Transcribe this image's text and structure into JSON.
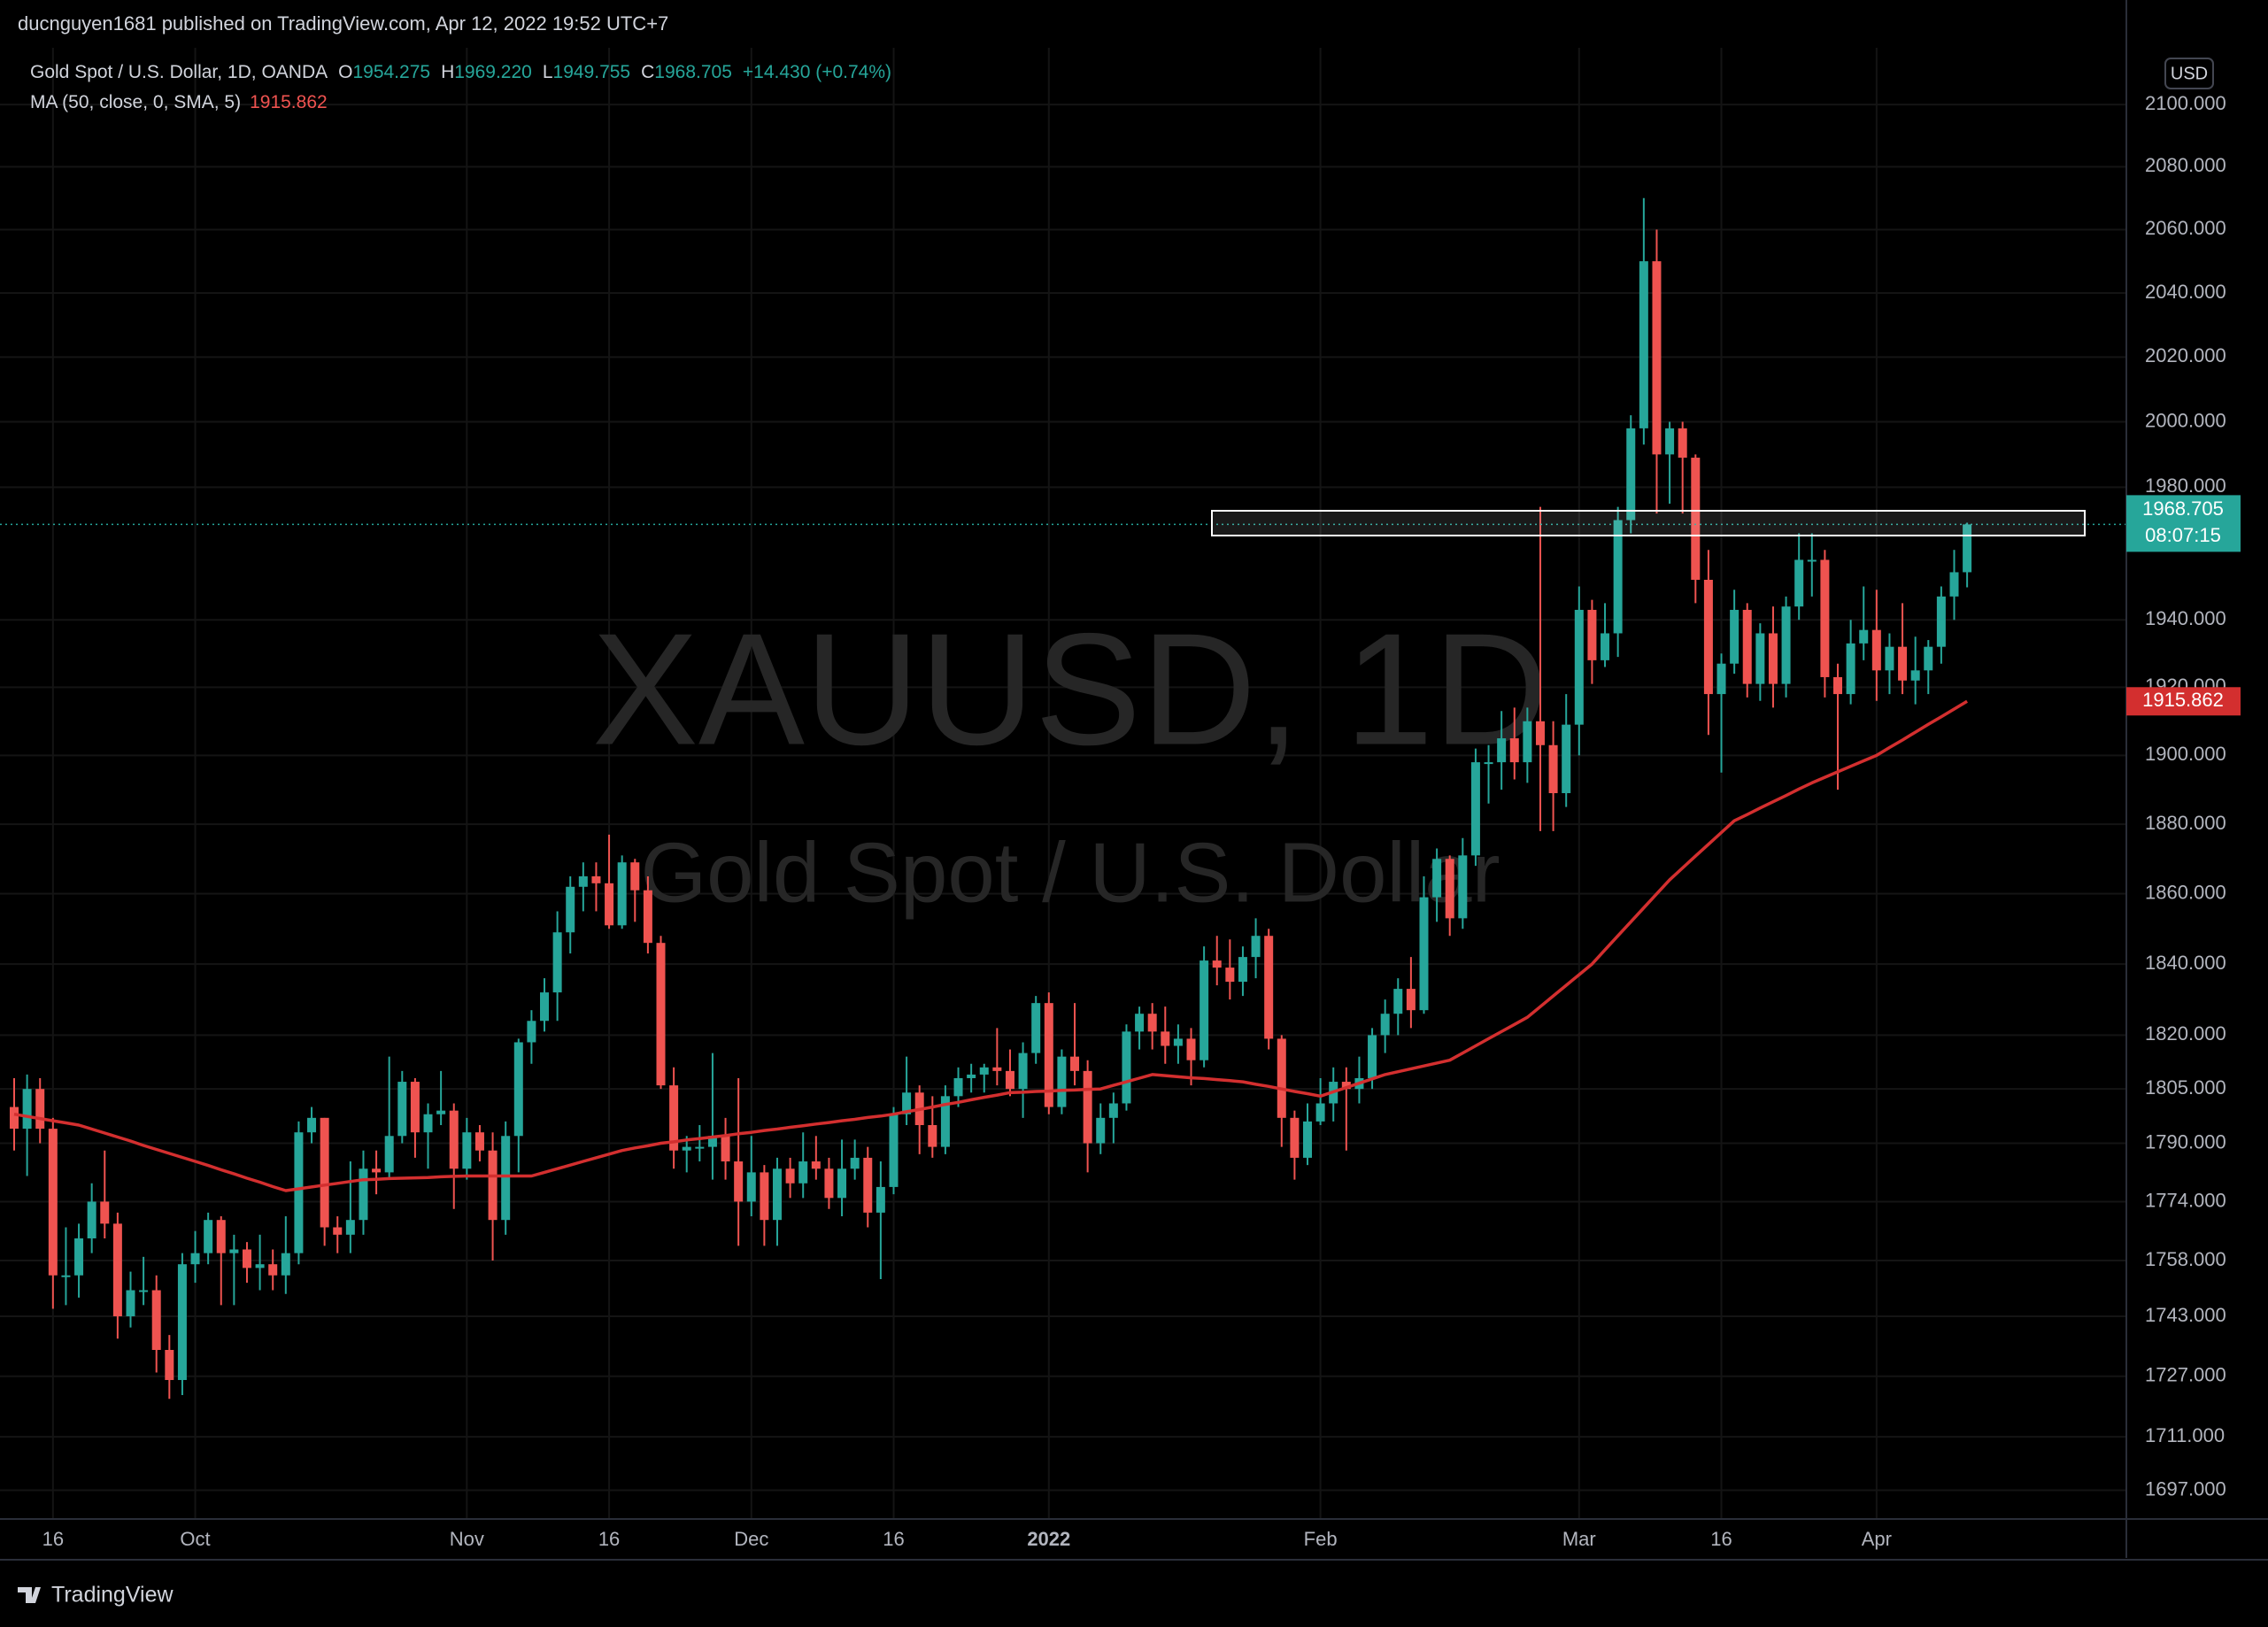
{
  "header": {
    "text": "ducnguyen1681 published on TradingView.com, Apr 12, 2022 19:52 UTC+7"
  },
  "footer": {
    "brand": "TradingView"
  },
  "chart_data": {
    "type": "candlestick",
    "log": true,
    "grid": true,
    "currency": "USD",
    "watermark": {
      "symbol": "XAUUSD, 1D",
      "description": "Gold Spot / U.S. Dollar"
    },
    "legend": {
      "title": "Gold Spot / U.S. Dollar, 1D, OANDA",
      "values": [
        {
          "key": "O",
          "text": "1954.275"
        },
        {
          "key": "H",
          "text": "1969.220"
        },
        {
          "key": "L",
          "text": "1949.755"
        },
        {
          "key": "C",
          "text": "1968.705"
        }
      ],
      "change": "+14.430 (+0.74%)"
    },
    "countdown": "08:07:15",
    "up_color": "#26a69a",
    "down_color": "#ef5350",
    "ylim": [
      1689.5,
      2118.4
    ],
    "yticks": [
      {
        "value": 1697,
        "label": "1697.000"
      },
      {
        "value": 1711,
        "label": "1711.000"
      },
      {
        "value": 1727,
        "label": "1727.000"
      },
      {
        "value": 1743,
        "label": "1743.000"
      },
      {
        "value": 1758,
        "label": "1758.000"
      },
      {
        "value": 1774,
        "label": "1774.000"
      },
      {
        "value": 1790,
        "label": "1790.000"
      },
      {
        "value": 1805,
        "label": "1805.000"
      },
      {
        "value": 1820,
        "label": "1820.000"
      },
      {
        "value": 1840,
        "label": "1840.000"
      },
      {
        "value": 1860,
        "label": "1860.000"
      },
      {
        "value": 1880,
        "label": "1880.000"
      },
      {
        "value": 1900,
        "label": "1900.000"
      },
      {
        "value": 1920,
        "label": "1920.000"
      },
      {
        "value": 1940,
        "label": "1940.000"
      },
      {
        "value": 1980,
        "label": "1980.000"
      },
      {
        "value": 2000,
        "label": "2000.000"
      },
      {
        "value": 2020,
        "label": "2020.000"
      },
      {
        "value": 2040,
        "label": "2040.000"
      },
      {
        "value": 2060,
        "label": "2060.000"
      },
      {
        "value": 2080,
        "label": "2080.000"
      },
      {
        "value": 2100,
        "label": "2100.000"
      }
    ],
    "categories": [
      null,
      null,
      null,
      "16",
      null,
      null,
      null,
      null,
      null,
      null,
      null,
      null,
      null,
      null,
      "Oct",
      null,
      null,
      null,
      null,
      null,
      null,
      null,
      null,
      null,
      null,
      null,
      null,
      null,
      null,
      null,
      null,
      null,
      null,
      null,
      null,
      "Nov",
      null,
      null,
      null,
      null,
      null,
      null,
      null,
      null,
      null,
      null,
      "16",
      null,
      null,
      null,
      null,
      null,
      null,
      null,
      null,
      null,
      null,
      "Dec",
      null,
      null,
      null,
      null,
      null,
      null,
      null,
      null,
      null,
      null,
      "16",
      null,
      null,
      null,
      null,
      null,
      null,
      null,
      null,
      null,
      null,
      null,
      "2022",
      null,
      null,
      null,
      null,
      null,
      null,
      null,
      null,
      null,
      null,
      null,
      null,
      null,
      null,
      null,
      null,
      null,
      null,
      null,
      null,
      "Feb",
      null,
      null,
      null,
      null,
      null,
      null,
      null,
      null,
      null,
      null,
      null,
      null,
      null,
      null,
      null,
      null,
      null,
      null,
      null,
      "Mar",
      null,
      null,
      null,
      null,
      null,
      null,
      null,
      null,
      null,
      null,
      "16",
      null,
      null,
      null,
      null,
      null,
      null,
      null,
      null,
      null,
      null,
      null,
      "Apr",
      null,
      null,
      null,
      null,
      null,
      null,
      null
    ],
    "open": [
      1800,
      1794,
      1805,
      1794,
      1754,
      1754,
      1764,
      1774,
      1768,
      1743,
      1750,
      1750,
      1734,
      1726,
      1757,
      1760,
      1769,
      1760,
      1761,
      1756,
      1757,
      1754,
      1760,
      1793,
      1797,
      1767,
      1765,
      1769,
      1783,
      1782,
      1792,
      1807,
      1793,
      1798,
      1799,
      1783,
      1793,
      1788,
      1769,
      1792,
      1818,
      1824,
      1832,
      1849,
      1862,
      1865,
      1863,
      1851,
      1869,
      1861,
      1846,
      1806,
      1788,
      1789,
      1789,
      1792,
      1785,
      1774,
      1782,
      1769,
      1783,
      1779,
      1785,
      1783,
      1775,
      1783,
      1786,
      1771,
      1778,
      1798,
      1804,
      1795,
      1789,
      1803,
      1808,
      1809,
      1811,
      1810,
      1805,
      1815,
      1829,
      1800,
      1814,
      1810,
      1790,
      1797,
      1801,
      1821,
      1826,
      1821,
      1817,
      1819,
      1813,
      1841,
      1839,
      1835,
      1842,
      1848,
      1819,
      1797,
      1786,
      1796,
      1801,
      1807,
      1805,
      1808,
      1820,
      1826,
      1833,
      1827,
      1859,
      1870,
      1853,
      1871,
      1898,
      1898,
      1905,
      1898,
      1910,
      1903,
      1889,
      1909,
      1943,
      1928,
      1936,
      1970,
      1998,
      2050,
      1990,
      1998,
      1989,
      1952,
      1918,
      1927,
      1943,
      1921,
      1936,
      1921,
      1944,
      1958,
      1958,
      1923,
      1918,
      1933,
      1937,
      1925,
      1932,
      1922,
      1925,
      1932,
      1947,
      1954.275
    ],
    "high": [
      1808,
      1809,
      1808,
      1797,
      1767,
      1768,
      1779,
      1788,
      1771,
      1755,
      1759,
      1754,
      1738,
      1760,
      1766,
      1771,
      1770,
      1765,
      1763,
      1765,
      1761,
      1770,
      1796,
      1800,
      1797,
      1770,
      1785,
      1788,
      1788,
      1814,
      1810,
      1808,
      1801,
      1810,
      1801,
      1797,
      1795,
      1793,
      1796,
      1819,
      1827,
      1836,
      1855,
      1865,
      1869,
      1869,
      1877,
      1871,
      1870,
      1865,
      1848,
      1811,
      1792,
      1795,
      1815,
      1797,
      1808,
      1792,
      1784,
      1786,
      1786,
      1793,
      1792,
      1786,
      1791,
      1791,
      1789,
      1785,
      1800,
      1814,
      1806,
      1803,
      1806,
      1811,
      1812,
      1812,
      1822,
      1816,
      1818,
      1831,
      1832,
      1816,
      1829,
      1813,
      1801,
      1804,
      1823,
      1828,
      1829,
      1828,
      1823,
      1822,
      1845,
      1848,
      1847,
      1845,
      1853,
      1850,
      1820,
      1799,
      1801,
      1808,
      1811,
      1811,
      1814,
      1822,
      1830,
      1836,
      1842,
      1865,
      1873,
      1871,
      1876,
      1902,
      1903,
      1913,
      1914,
      1914,
      1974,
      1910,
      1918,
      1950,
      1946,
      1945,
      1974,
      2002,
      2070,
      2060,
      2000,
      2000,
      1990,
      1961,
      1930,
      1949,
      1945,
      1939,
      1944,
      1947,
      1966,
      1966,
      1961,
      1927,
      1940,
      1950,
      1949,
      1936,
      1945,
      1935,
      1934,
      1950,
      1961,
      1969.22
    ],
    "low": [
      1788,
      1781,
      1790,
      1745,
      1746,
      1748,
      1760,
      1764,
      1737,
      1740,
      1746,
      1728,
      1721,
      1722,
      1752,
      1757,
      1746,
      1746,
      1752,
      1750,
      1750,
      1749,
      1757,
      1790,
      1762,
      1760,
      1760,
      1765,
      1776,
      1780,
      1790,
      1786,
      1783,
      1795,
      1772,
      1780,
      1785,
      1758,
      1765,
      1782,
      1812,
      1821,
      1824,
      1843,
      1855,
      1855,
      1850,
      1850,
      1852,
      1843,
      1805,
      1783,
      1782,
      1785,
      1780,
      1780,
      1762,
      1770,
      1762,
      1762,
      1775,
      1775,
      1780,
      1772,
      1770,
      1780,
      1767,
      1753,
      1776,
      1795,
      1787,
      1786,
      1787,
      1800,
      1804,
      1804,
      1806,
      1803,
      1797,
      1812,
      1798,
      1798,
      1806,
      1782,
      1787,
      1790,
      1799,
      1816,
      1816,
      1812,
      1812,
      1806,
      1811,
      1834,
      1830,
      1831,
      1836,
      1816,
      1789,
      1780,
      1784,
      1795,
      1796,
      1788,
      1801,
      1805,
      1815,
      1820,
      1822,
      1826,
      1852,
      1848,
      1850,
      1868,
      1886,
      1890,
      1893,
      1892,
      1878,
      1878,
      1885,
      1900,
      1921,
      1926,
      1929,
      1966,
      1993,
      1972,
      1975,
      1972,
      1945,
      1906,
      1895,
      1924,
      1917,
      1916,
      1914,
      1917,
      1940,
      1947,
      1917,
      1890,
      1915,
      1928,
      1916,
      1918,
      1918,
      1915,
      1918,
      1927,
      1940,
      1949.755
    ],
    "close": [
      1794,
      1805,
      1794,
      1754,
      1754,
      1764,
      1774,
      1768,
      1743,
      1750,
      1750,
      1734,
      1726,
      1757,
      1760,
      1769,
      1760,
      1761,
      1756,
      1757,
      1754,
      1760,
      1793,
      1797,
      1767,
      1765,
      1769,
      1783,
      1782,
      1792,
      1807,
      1793,
      1798,
      1799,
      1783,
      1793,
      1788,
      1769,
      1792,
      1818,
      1824,
      1832,
      1849,
      1862,
      1865,
      1863,
      1851,
      1869,
      1861,
      1846,
      1806,
      1788,
      1789,
      1789,
      1792,
      1785,
      1774,
      1782,
      1769,
      1783,
      1779,
      1785,
      1783,
      1775,
      1783,
      1786,
      1771,
      1778,
      1798,
      1804,
      1795,
      1789,
      1803,
      1808,
      1809,
      1811,
      1810,
      1805,
      1815,
      1829,
      1800,
      1814,
      1810,
      1790,
      1797,
      1801,
      1821,
      1826,
      1821,
      1817,
      1819,
      1813,
      1841,
      1839,
      1835,
      1842,
      1848,
      1819,
      1797,
      1786,
      1796,
      1801,
      1807,
      1805,
      1808,
      1820,
      1826,
      1833,
      1827,
      1859,
      1870,
      1853,
      1871,
      1898,
      1898,
      1905,
      1898,
      1910,
      1903,
      1889,
      1909,
      1943,
      1928,
      1936,
      1970,
      1998,
      2050,
      1990,
      1998,
      1989,
      1952,
      1918,
      1927,
      1943,
      1921,
      1936,
      1921,
      1944,
      1958,
      1958,
      1923,
      1918,
      1933,
      1937,
      1925,
      1932,
      1922,
      1925,
      1932,
      1947,
      1954.275,
      1968.705
    ],
    "ma": {
      "name": "MA (50, close, 0, SMA, 5)",
      "value_label": "1915.862",
      "color": "#d32f2f",
      "values": [
        1798,
        1797.4,
        1796.8,
        1796.2,
        1795.6,
        1795,
        1793.9,
        1792.8,
        1791.7,
        1790.6,
        1789.4,
        1788.3,
        1787.2,
        1786.1,
        1785,
        1783.9,
        1782.7,
        1781.6,
        1780.4,
        1779.3,
        1778.1,
        1777,
        1777.5,
        1778,
        1778.5,
        1779,
        1779.5,
        1780,
        1780.1,
        1780.3,
        1780.4,
        1780.5,
        1780.6,
        1780.8,
        1780.9,
        1781,
        1781,
        1781,
        1781,
        1781,
        1781,
        1782,
        1783,
        1784,
        1785,
        1786,
        1787,
        1788,
        1788.7,
        1789.3,
        1790,
        1790.4,
        1790.9,
        1791.3,
        1791.7,
        1792.1,
        1792.6,
        1793,
        1793.5,
        1793.9,
        1794.4,
        1794.8,
        1795.3,
        1795.7,
        1796.2,
        1796.6,
        1797.1,
        1797.5,
        1798,
        1798.7,
        1799.3,
        1800,
        1800.7,
        1801.3,
        1802,
        1802.7,
        1803.3,
        1804,
        1804.1,
        1804.3,
        1804.4,
        1804.6,
        1804.7,
        1804.9,
        1805,
        1806,
        1807,
        1808,
        1809,
        1808.7,
        1808.4,
        1808.1,
        1807.9,
        1807.6,
        1807.3,
        1807,
        1806.3,
        1805.7,
        1805,
        1804.3,
        1803.7,
        1803,
        1804.2,
        1805.4,
        1806.6,
        1807.8,
        1809,
        1809.8,
        1810.6,
        1811.4,
        1812.2,
        1813,
        1815,
        1817,
        1819,
        1821,
        1823,
        1825,
        1828,
        1831,
        1834,
        1837,
        1840,
        1844,
        1848,
        1852,
        1856,
        1860,
        1864,
        1867.4,
        1870.8,
        1874.2,
        1877.6,
        1881,
        1882.8,
        1884.7,
        1886.5,
        1888.3,
        1890.2,
        1892,
        1893.6,
        1895.2,
        1896.8,
        1898.4,
        1900,
        1902.3,
        1904.5,
        1906.8,
        1909.1,
        1911.3,
        1913.6,
        1915.862
      ]
    }
  }
}
